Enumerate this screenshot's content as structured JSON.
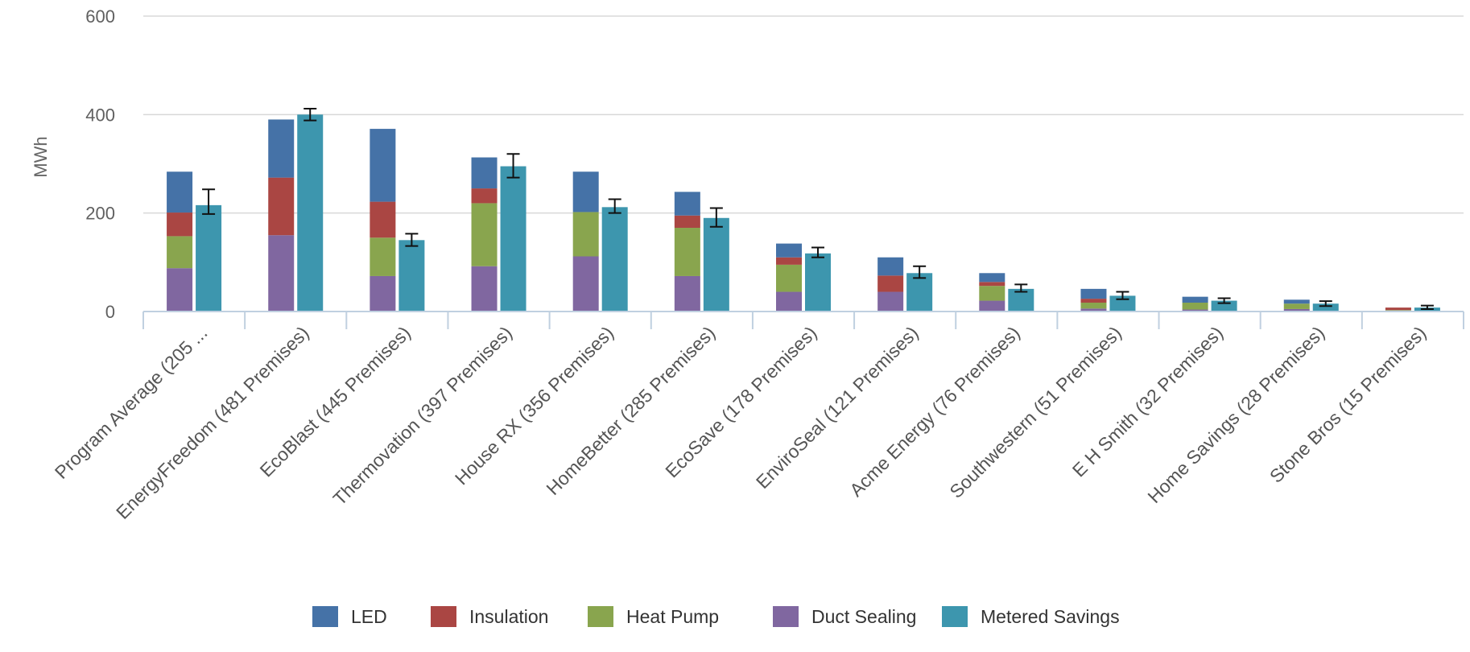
{
  "chart_data": {
    "type": "bar",
    "stacked": true,
    "ylabel": "MWh",
    "ylim": [
      0,
      600
    ],
    "yticks": [
      0,
      200,
      400,
      600
    ],
    "grid": true,
    "legend_position": "bottom",
    "categories": [
      "Program Average (205 ...",
      "EnergyFreedom (481 Premises)",
      "EcoBlast (445 Premises)",
      "Thermovation (397 Premises)",
      "House RX (356 Premises)",
      "HomeBetter (285 Premises)",
      "EcoSave (178 Premises)",
      "EnviroSeal (121 Premises)",
      "Acme Energy (76 Premises)",
      "Southwestern (51 Premises)",
      "E H Smith (32 Premises)",
      "Home Savings (28 Premises)",
      "Stone Bros (15 Premises)"
    ],
    "stacked_series": [
      {
        "name": "Duct Sealing",
        "color": "#8067a0",
        "values": [
          88,
          155,
          72,
          92,
          112,
          72,
          40,
          40,
          22,
          6,
          4,
          5,
          2
        ]
      },
      {
        "name": "Heat Pump",
        "color": "#89a54e",
        "values": [
          65,
          0,
          78,
          128,
          90,
          98,
          55,
          0,
          30,
          12,
          14,
          11,
          1
        ]
      },
      {
        "name": "Insulation",
        "color": "#aa4643",
        "values": [
          48,
          117,
          73,
          30,
          0,
          25,
          15,
          33,
          8,
          8,
          0,
          0,
          5
        ]
      },
      {
        "name": "LED",
        "color": "#4572a7",
        "values": [
          83,
          118,
          148,
          63,
          82,
          48,
          28,
          37,
          18,
          20,
          12,
          8,
          0
        ]
      }
    ],
    "metered_series": {
      "name": "Metered Savings",
      "color": "#3d96ae",
      "values": [
        216,
        400,
        145,
        295,
        212,
        190,
        118,
        78,
        46,
        32,
        22,
        16,
        8
      ],
      "error_low": [
        198,
        388,
        133,
        272,
        200,
        172,
        110,
        68,
        40,
        25,
        17,
        11,
        5
      ],
      "error_high": [
        248,
        412,
        158,
        320,
        228,
        210,
        130,
        92,
        55,
        40,
        27,
        21,
        12
      ]
    },
    "legend": [
      "LED",
      "Insulation",
      "Heat Pump",
      "Duct Sealing",
      "Metered Savings"
    ],
    "colors": {
      "LED": "#4572a7",
      "Insulation": "#aa4643",
      "Heat Pump": "#89a54e",
      "Duct Sealing": "#8067a0",
      "Metered Savings": "#3d96ae",
      "grid": "#d8d8d8",
      "axis": "#c0d0e0"
    }
  }
}
